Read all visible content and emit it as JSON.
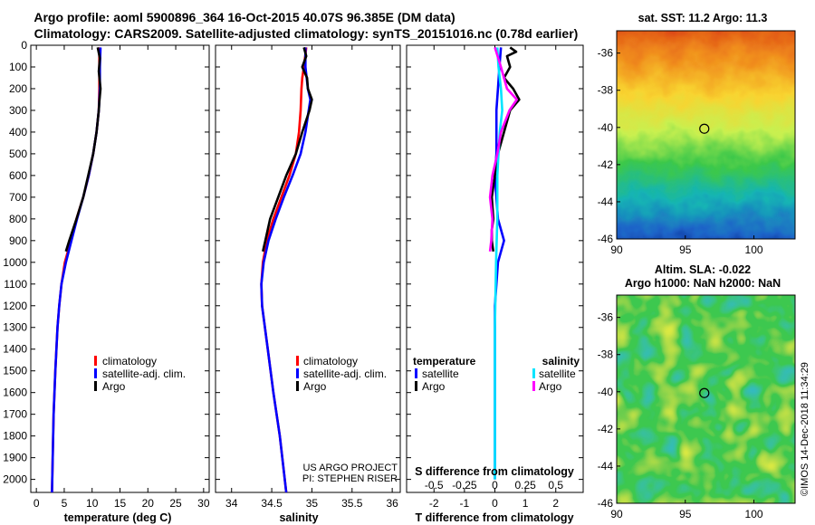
{
  "title": {
    "line1": "Argo profile: aoml 5900896_364 16-Oct-2015 40.07S 96.385E (DM data)",
    "line2": "Climatology: CARS2009. Satellite-adjusted climatology: synTS_20151016.nc (0.78d earlier)"
  },
  "colors": {
    "climatology": "#ff0000",
    "satellite": "#0000ff",
    "argo": "#000000",
    "t_satellite": "#0000ff",
    "s_satellite": "#00e5ff",
    "s_argo": "#ff00ff"
  },
  "credits": {
    "project": "US ARGO PROJECT",
    "pi": "PI: STEPHEN RISER"
  },
  "stamp": "©IMOS 14-Dec-2018 11:34:29",
  "chart_data": [
    {
      "type": "line",
      "name": "temperature-profile",
      "xlabel": "temperature (deg C)",
      "xlim": [
        -1,
        31
      ],
      "xticks": [
        0,
        5,
        10,
        15,
        20,
        25,
        30
      ],
      "ylim": [
        2060,
        0
      ],
      "yticks": [
        0,
        100,
        200,
        300,
        400,
        500,
        600,
        700,
        800,
        900,
        1000,
        1100,
        1200,
        1300,
        1400,
        1500,
        1600,
        1700,
        1800,
        1900,
        2000
      ],
      "legend": [
        "climatology",
        "satellite-adj. clim.",
        "Argo"
      ],
      "series": [
        {
          "name": "climatology",
          "color": "#ff0000",
          "depth": [
            10,
            100,
            200,
            300,
            400,
            500,
            600,
            700,
            800,
            900,
            1000,
            1100,
            1200,
            1300,
            1400,
            1500,
            1700,
            2060
          ],
          "values": [
            11.3,
            11.3,
            11.3,
            11.2,
            10.8,
            10.2,
            9.4,
            8.4,
            7.2,
            6.2,
            5.1,
            4.5,
            4.1,
            3.8,
            3.6,
            3.4,
            3.1,
            2.8
          ]
        },
        {
          "name": "satellite-adj. clim.",
          "color": "#0000ff",
          "depth": [
            10,
            100,
            200,
            300,
            400,
            500,
            600,
            700,
            800,
            900,
            1000,
            1100,
            1200,
            1300,
            1400,
            1500,
            1700,
            2060
          ],
          "values": [
            11.5,
            11.4,
            11.4,
            11.2,
            10.8,
            10.2,
            9.4,
            8.4,
            7.3,
            6.3,
            5.3,
            4.5,
            4.1,
            3.8,
            3.6,
            3.4,
            3.1,
            2.8
          ]
        },
        {
          "name": "Argo",
          "color": "#000000",
          "depth": [
            10,
            60,
            120,
            200,
            260,
            300,
            400,
            500,
            600,
            700,
            800,
            900,
            950
          ],
          "values": [
            11.0,
            11.4,
            11.2,
            11.5,
            11.3,
            11.2,
            10.8,
            10.2,
            9.3,
            8.4,
            7.2,
            5.9,
            5.3
          ]
        }
      ]
    },
    {
      "type": "line",
      "name": "salinity-profile",
      "xlabel": "salinity",
      "xlim": [
        33.8,
        36.1
      ],
      "xticks": [
        34,
        34.5,
        35,
        35.5,
        36
      ],
      "ylim": [
        2060,
        0
      ],
      "legend": [
        "climatology",
        "satellite-adj. clim.",
        "Argo"
      ],
      "series": [
        {
          "name": "climatology",
          "color": "#ff0000",
          "depth": [
            10,
            100,
            150,
            200,
            300,
            400,
            500,
            600,
            700,
            800,
            900,
            1000,
            1100,
            1200,
            1400,
            1600,
            1800,
            2060
          ],
          "values": [
            34.93,
            34.9,
            34.88,
            34.87,
            34.86,
            34.84,
            34.8,
            34.72,
            34.62,
            34.52,
            34.44,
            34.39,
            34.37,
            34.38,
            34.45,
            34.52,
            34.6,
            34.68
          ]
        },
        {
          "name": "satellite-adj. clim.",
          "color": "#0000ff",
          "depth": [
            10,
            100,
            200,
            250,
            300,
            400,
            500,
            600,
            700,
            800,
            900,
            1000,
            1100,
            1200,
            1400,
            1600,
            1800,
            2060
          ],
          "values": [
            34.92,
            34.92,
            34.95,
            34.98,
            34.96,
            34.92,
            34.86,
            34.76,
            34.65,
            34.55,
            34.46,
            34.4,
            34.37,
            34.38,
            34.45,
            34.52,
            34.6,
            34.68
          ]
        },
        {
          "name": "Argo",
          "color": "#000000",
          "depth": [
            10,
            50,
            100,
            150,
            200,
            250,
            300,
            400,
            500,
            600,
            700,
            800,
            900,
            950
          ],
          "values": [
            34.9,
            34.93,
            34.88,
            34.94,
            34.95,
            35.0,
            34.97,
            34.88,
            34.8,
            34.68,
            34.58,
            34.48,
            34.42,
            34.39
          ]
        }
      ]
    },
    {
      "type": "line",
      "name": "difference-from-climatology",
      "xlabel": "T difference from climatology",
      "xlabel_top": "S difference from climatology",
      "xlim": [
        -2.9,
        2.9
      ],
      "xticks": [
        -2,
        -1,
        0,
        1,
        2
      ],
      "s_xticks": [
        -0.5,
        -0.25,
        0,
        0.25,
        0.5
      ],
      "ylim": [
        2060,
        0
      ],
      "legend_titles": [
        "temperature",
        "salinity"
      ],
      "legend_left": [
        "satellite",
        "Argo"
      ],
      "legend_right": [
        "satellite",
        "Argo"
      ],
      "series": [
        {
          "name": "temperature satellite",
          "color": "#0000ff",
          "depth": [
            10,
            100,
            200,
            300,
            400,
            500,
            600,
            700,
            800,
            900,
            1000,
            1200,
            1500,
            1800,
            2000
          ],
          "values": [
            0.2,
            0.15,
            0.1,
            0.05,
            0.05,
            0.05,
            0.0,
            0.05,
            0.1,
            0.3,
            0.1,
            0.0,
            0.0,
            0.0,
            0.0
          ]
        },
        {
          "name": "temperature Argo",
          "color": "#000000",
          "depth": [
            10,
            30,
            50,
            100,
            150,
            200,
            250,
            300,
            400,
            500,
            600,
            700,
            800,
            850,
            900,
            950
          ],
          "values": [
            0.5,
            0.7,
            0.4,
            0.5,
            0.3,
            0.6,
            0.8,
            0.5,
            0.3,
            0.1,
            0.0,
            -0.1,
            -0.05,
            -0.1,
            -0.1,
            -0.05
          ]
        },
        {
          "name": "salinity satellite",
          "color": "#00e5ff",
          "depth": [
            10,
            100,
            200,
            300,
            400,
            500,
            600,
            800,
            1000,
            1300,
            1600,
            2000
          ],
          "values": [
            0.02,
            0.03,
            0.05,
            0.06,
            0.04,
            0.03,
            0.02,
            0.02,
            0.01,
            0.0,
            0.0,
            0.0
          ]
        },
        {
          "name": "salinity Argo",
          "color": "#ff00ff",
          "depth": [
            10,
            100,
            200,
            250,
            300,
            400,
            500,
            600,
            700,
            800,
            900,
            950
          ],
          "values": [
            0.0,
            0.05,
            0.1,
            0.18,
            0.12,
            0.05,
            0.02,
            -0.02,
            -0.04,
            -0.02,
            -0.03,
            -0.04
          ]
        }
      ]
    },
    {
      "type": "heatmap",
      "name": "sst-map",
      "title": "sat. SST: 11.2 Argo: 11.3",
      "xlim": [
        90,
        103
      ],
      "ylim": [
        -46,
        -34.8
      ],
      "xticks": [
        90,
        95,
        100
      ],
      "yticks": [
        -36,
        -38,
        -40,
        -42,
        -44,
        -46
      ],
      "marker": {
        "lon": 96.385,
        "lat": -40.07
      }
    },
    {
      "type": "heatmap",
      "name": "sla-map",
      "title": "Altim. SLA: -0.022",
      "subtitle": "Argo h1000: NaN h2000: NaN",
      "xlim": [
        90,
        103
      ],
      "ylim": [
        -46,
        -34.8
      ],
      "xticks": [
        90,
        95,
        100
      ],
      "yticks": [
        -36,
        -38,
        -40,
        -42,
        -44,
        -46
      ],
      "marker": {
        "lon": 96.385,
        "lat": -40.07
      }
    }
  ]
}
